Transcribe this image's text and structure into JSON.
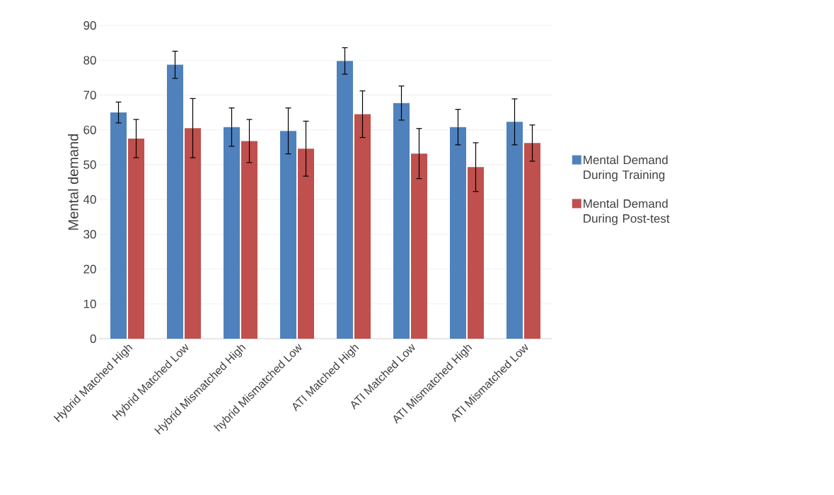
{
  "chart_data": {
    "type": "bar",
    "ylabel": "Mental demand",
    "categories": [
      "Hybrid Matched High",
      "Hybrid Matched Low",
      "Hybrid Mismatched High",
      "hybrid Mismatched Low",
      "ATI Matched High",
      "ATI Matched Low",
      "ATI Mismatched High",
      "ATI Mismatched Low"
    ],
    "series": [
      {
        "name": "Mental Demand During Training",
        "color": "#4f81bd",
        "values": [
          65,
          78.7,
          60.8,
          59.7,
          79.8,
          67.7,
          60.8,
          62.3
        ],
        "errors": [
          3,
          3.9,
          5.5,
          6.6,
          3.8,
          4.9,
          5.1,
          6.6
        ]
      },
      {
        "name": "Mental Demand During Post-test",
        "color": "#c0504d",
        "values": [
          57.5,
          60.5,
          56.8,
          54.6,
          64.5,
          53.2,
          49.3,
          56.2
        ],
        "errors": [
          5.5,
          8.5,
          6.2,
          7.9,
          6.7,
          7.2,
          7,
          5.2
        ]
      }
    ],
    "ylim": [
      0,
      90
    ],
    "yticks": [
      0,
      10,
      20,
      30,
      40,
      50,
      60,
      70,
      80,
      90
    ],
    "grid": "y",
    "legend": "right"
  }
}
